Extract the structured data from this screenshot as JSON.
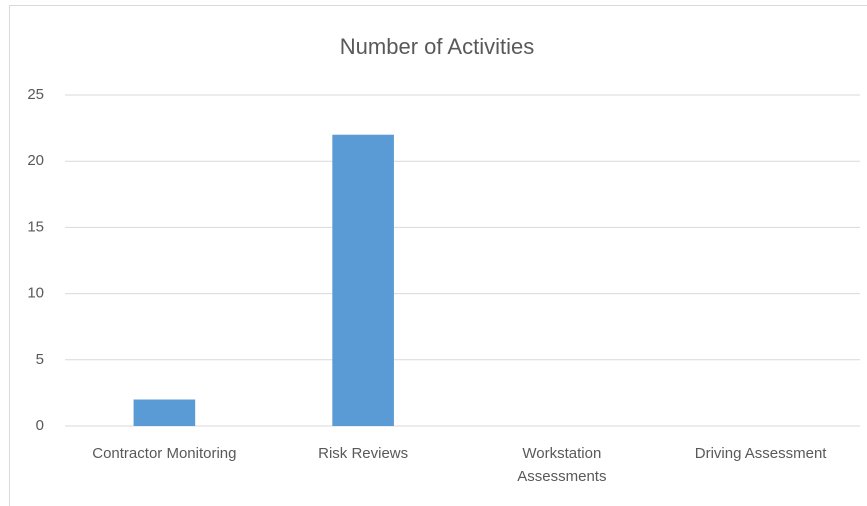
{
  "chart_data": {
    "type": "bar",
    "title": "Number of Activities",
    "categories": [
      "Contractor Monitoring",
      "Risk Reviews",
      "Workstation Assessments",
      "Driving Assessment"
    ],
    "values": [
      2,
      22,
      0,
      0
    ],
    "color": "#5b9bd5",
    "ylim": [
      0,
      25
    ],
    "yticks": [
      0,
      5,
      10,
      15,
      20,
      25
    ],
    "grid": true
  }
}
